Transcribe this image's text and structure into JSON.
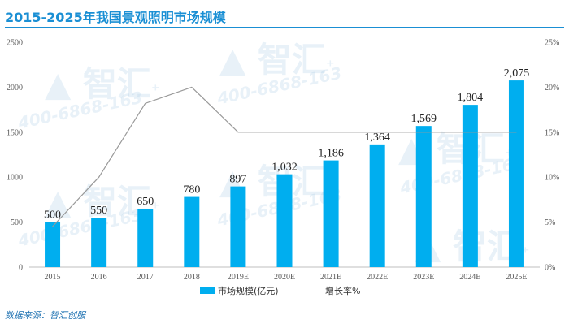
{
  "title": "2015-2025年我国景观照明市场规模",
  "source": "数据来源：智汇创服",
  "watermark": {
    "logo": "智汇",
    "phone": "400-6868-163"
  },
  "chart_data": {
    "type": "bar",
    "categories": [
      "2015",
      "2016",
      "2017",
      "2018",
      "2019E",
      "2020E",
      "2021E",
      "2022E",
      "2023E",
      "2024E",
      "2025E"
    ],
    "series": [
      {
        "name": "市场规模(亿元)",
        "type": "bar",
        "axis": "left",
        "color": "#00aeef",
        "values": [
          500,
          550,
          650,
          780,
          897,
          1032,
          1186,
          1364,
          1569,
          1804,
          2075
        ],
        "data_labels": [
          "500",
          "550",
          "650",
          "780",
          "897",
          "1,032",
          "1,186",
          "1,364",
          "1,569",
          "1,804",
          "2,075"
        ]
      },
      {
        "name": "增长率%",
        "type": "line",
        "axis": "right",
        "color": "#999999",
        "values": [
          4.5,
          10.0,
          18.2,
          20.0,
          15.0,
          15.0,
          15.0,
          15.0,
          15.0,
          15.0,
          15.0
        ]
      }
    ],
    "y_left": {
      "lim": [
        0,
        2500
      ],
      "ticks": [
        "0",
        "500",
        "1000",
        "1500",
        "2000",
        "2500"
      ]
    },
    "y_right": {
      "lim": [
        0,
        25
      ],
      "ticks": [
        "0%",
        "5%",
        "10%",
        "15%",
        "20%",
        "25%"
      ]
    },
    "legend_position": "bottom",
    "grid": false
  }
}
